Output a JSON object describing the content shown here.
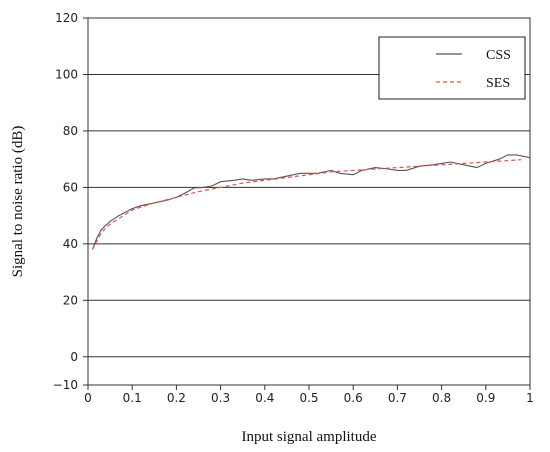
{
  "chart_data": {
    "type": "line",
    "title": "",
    "xlabel": "Input signal amplitude",
    "ylabel": "Signal to noise ratio (dB)",
    "xlim": [
      0,
      1
    ],
    "ylim": [
      -10,
      120
    ],
    "x_ticks": [
      "0",
      "0.1",
      "0.2",
      "0.3",
      "0.4",
      "0.5",
      "0.6",
      "0.7",
      "0.8",
      "0.9",
      "1"
    ],
    "y_ticks": [
      "120",
      "100",
      "80",
      "60",
      "40",
      "20",
      "0",
      "−10"
    ],
    "grid": "horizontal",
    "legend_position": "top-right",
    "series": [
      {
        "name": "CSS",
        "color": "#555555",
        "style": "solid",
        "x": [
          0.01,
          0.02,
          0.03,
          0.05,
          0.07,
          0.1,
          0.12,
          0.15,
          0.18,
          0.2,
          0.22,
          0.24,
          0.26,
          0.28,
          0.3,
          0.33,
          0.35,
          0.37,
          0.4,
          0.42,
          0.45,
          0.48,
          0.5,
          0.52,
          0.55,
          0.57,
          0.6,
          0.62,
          0.65,
          0.68,
          0.7,
          0.72,
          0.75,
          0.78,
          0.8,
          0.82,
          0.85,
          0.88,
          0.9,
          0.93,
          0.95,
          0.97,
          1.0
        ],
        "y": [
          38,
          42,
          45,
          48,
          50,
          52.5,
          53.5,
          54.5,
          55.5,
          56.5,
          58,
          59.8,
          60,
          60.5,
          62,
          62.5,
          63,
          62.5,
          63,
          63,
          64,
          65,
          65,
          65,
          66,
          65,
          64.5,
          66,
          67,
          66.5,
          66,
          66,
          67.5,
          68,
          68.5,
          69,
          68,
          67,
          68.5,
          70,
          71.5,
          71.5,
          70.5
        ]
      },
      {
        "name": "SES",
        "color": "#e8504a",
        "style": "dashed",
        "x": [
          0.01,
          0.03,
          0.05,
          0.08,
          0.1,
          0.15,
          0.2,
          0.25,
          0.3,
          0.35,
          0.4,
          0.45,
          0.5,
          0.55,
          0.6,
          0.65,
          0.7,
          0.75,
          0.8,
          0.85,
          0.9,
          0.95,
          0.98
        ],
        "y": [
          38,
          44,
          47,
          50,
          52,
          54.5,
          56.5,
          58.5,
          60,
          61.5,
          62.5,
          63.5,
          64.5,
          65.5,
          66,
          66.5,
          67,
          67.5,
          68,
          68.5,
          69,
          69.5,
          69.8
        ]
      }
    ]
  }
}
